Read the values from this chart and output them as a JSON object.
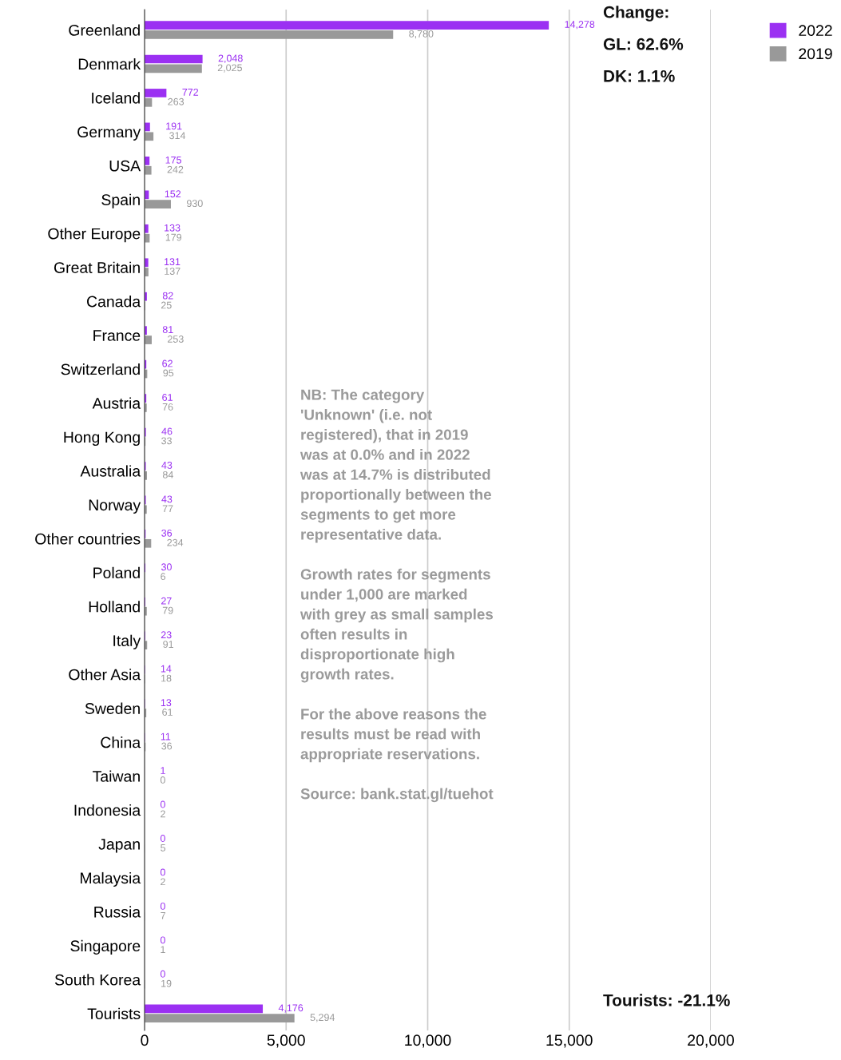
{
  "chart_data": {
    "type": "bar",
    "orientation": "horizontal",
    "categories": [
      "Greenland",
      "Denmark",
      "Iceland",
      "Germany",
      "USA",
      "Spain",
      "Other Europe",
      "Great Britain",
      "Canada",
      "France",
      "Switzerland",
      "Austria",
      "Hong Kong",
      "Australia",
      "Norway",
      "Other countries",
      "Poland",
      "Holland",
      "Italy",
      "Other Asia",
      "Sweden",
      "China",
      "Taiwan",
      "Indonesia",
      "Japan",
      "Malaysia",
      "Russia",
      "Singapore",
      "South Korea",
      "Tourists"
    ],
    "series": [
      {
        "name": "2022",
        "color": "#9b30f2",
        "values": [
          14278,
          2048,
          772,
          191,
          175,
          152,
          133,
          131,
          82,
          81,
          62,
          61,
          46,
          43,
          43,
          36,
          30,
          27,
          23,
          14,
          13,
          11,
          1,
          0,
          0,
          0,
          0,
          0,
          0,
          4176
        ],
        "value_labels": [
          "14,278",
          "2,048",
          "772",
          "191",
          "175",
          "152",
          "133",
          "131",
          "82",
          "81",
          "62",
          "61",
          "46",
          "43",
          "43",
          "36",
          "30",
          "27",
          "23",
          "14",
          "13",
          "11",
          "1",
          "0",
          "0",
          "0",
          "0",
          "0",
          "0",
          "4,176"
        ]
      },
      {
        "name": "2019",
        "color": "#999999",
        "values": [
          8780,
          2025,
          263,
          314,
          242,
          930,
          179,
          137,
          25,
          253,
          95,
          76,
          33,
          84,
          77,
          234,
          6,
          79,
          91,
          18,
          61,
          36,
          0,
          2,
          5,
          2,
          7,
          1,
          19,
          5294
        ],
        "value_labels": [
          "8,780",
          "2,025",
          "263",
          "314",
          "242",
          "930",
          "179",
          "137",
          "25",
          "253",
          "95",
          "76",
          "33",
          "84",
          "77",
          "234",
          "6",
          "79",
          "91",
          "18",
          "61",
          "36",
          "0",
          "2",
          "5",
          "2",
          "7",
          "1",
          "19",
          "5,294"
        ]
      }
    ],
    "xlim": [
      0,
      20000
    ],
    "xticks": [
      {
        "value": 0,
        "label": "0"
      },
      {
        "value": 5000,
        "label": "5,000"
      },
      {
        "value": 10000,
        "label": "10,000"
      },
      {
        "value": 15000,
        "label": "15,000"
      },
      {
        "value": 20000,
        "label": "20,000"
      }
    ],
    "grid": "x",
    "legend": "top right",
    "annotations": [
      "Change:",
      "GL: 62.6%",
      "DK: 1.1%",
      "Tourists: -21.1%",
      "NB: The category\n'Unknown' (i.e. not\nregistered), that in 2019\nwas at 0.0% and in 2022\nwas at 14.7% is distributed\nproportionally between the\nsegments to get more\nrepresentative data.\n\nGrowth rates for segments\nunder 1,000 are marked\nwith grey as small samples\noften results in\ndisproportionate high\ngrowth rates.\n\nFor the above reasons the\nresults must be read with\nappropriate reservations.\n\nSource: bank.stat.gl/tuehot"
    ]
  }
}
